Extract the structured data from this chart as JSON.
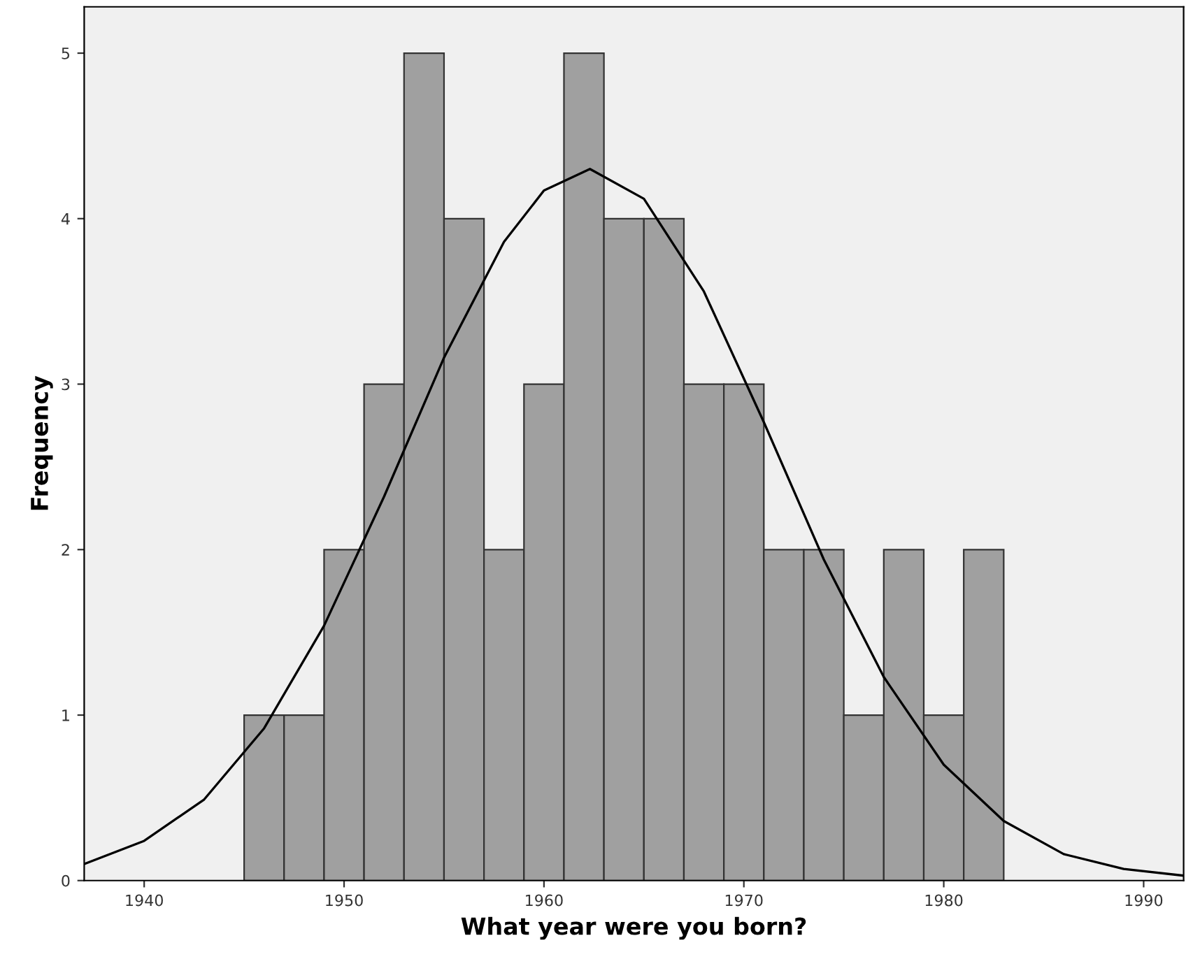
{
  "chart_data": {
    "type": "histogram",
    "xlabel": "What year were you born?",
    "ylabel": "Frequency",
    "bins": [
      1945,
      1947,
      1949,
      1951,
      1953,
      1955,
      1957,
      1959,
      1961,
      1963,
      1965,
      1967,
      1969,
      1971,
      1973,
      1975,
      1977,
      1979,
      1981,
      1983
    ],
    "values": [
      1,
      1,
      2,
      3,
      5,
      4,
      2,
      3,
      5,
      4,
      4,
      3,
      3,
      2,
      2,
      1,
      2,
      1,
      2
    ],
    "color": "#a0a0a0",
    "series": [
      {
        "type": "line",
        "color": "#000000",
        "x": [
          1937,
          1940,
          1943,
          1946,
          1949,
          1952,
          1955,
          1958,
          1960,
          1962.3,
          1965,
          1968,
          1971,
          1974,
          1977,
          1980,
          1983,
          1986,
          1989,
          1992
        ],
        "values": [
          0.1,
          0.24,
          0.49,
          0.92,
          1.54,
          2.32,
          3.16,
          3.86,
          4.17,
          4.3,
          4.12,
          3.56,
          2.77,
          1.94,
          1.23,
          0.7,
          0.36,
          0.16,
          0.07,
          0.03
        ]
      }
    ],
    "xlim": [
      1937,
      1992
    ],
    "xticks": [
      1940,
      1950,
      1960,
      1970,
      1980,
      1990
    ],
    "ylim": [
      0,
      5.28
    ],
    "yticks": [
      0,
      1,
      2,
      3,
      4,
      5
    ],
    "grid": false,
    "legend": false
  }
}
